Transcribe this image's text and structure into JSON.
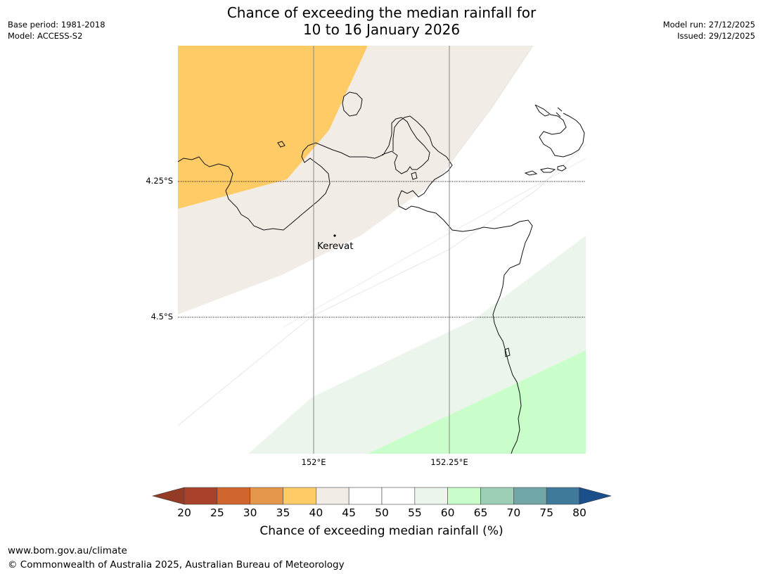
{
  "title": {
    "line1": "Chance of exceeding the median rainfall for",
    "line2": "10 to 16 January 2026"
  },
  "meta_left": {
    "base_period": "Base period: 1981-2018",
    "model": "Model: ACCESS-S2"
  },
  "meta_right": {
    "model_run": "Model run: 27/12/2025",
    "issued": "Issued: 29/12/2025"
  },
  "map": {
    "lat_labels": [
      "4.25°S",
      "4.5°S"
    ],
    "lon_labels": [
      "152°E",
      "152.25°E"
    ],
    "places": [
      {
        "name": "Kerevat",
        "lon": 152.04,
        "lat": -4.35
      }
    ]
  },
  "colorbar": {
    "ticks": [
      "20",
      "25",
      "30",
      "35",
      "40",
      "45",
      "50",
      "55",
      "60",
      "65",
      "70",
      "75",
      "80"
    ],
    "colors": [
      "#a8422a",
      "#d0652e",
      "#e4974a",
      "#fecb66",
      "#f1ece6",
      "#ffffff",
      "#ffffff",
      "#ebf5eb",
      "#c9fdc9",
      "#9ccfb6",
      "#70a7a6",
      "#407a9a"
    ],
    "under_color": "#943b26",
    "over_color": "#1a4f8c",
    "label": "Chance of exceeding median rainfall (%)"
  },
  "footer": {
    "url": "www.bom.gov.au/climate",
    "copyright": "© Commonwealth of Australia 2025, Australian Bureau of Meteorology"
  }
}
